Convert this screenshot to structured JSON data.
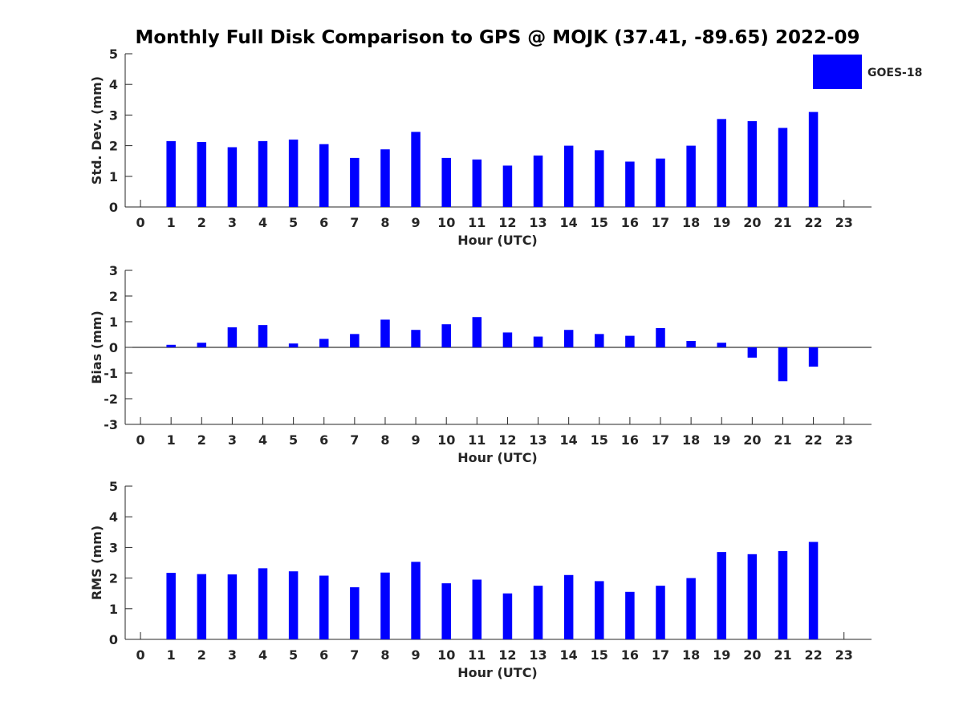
{
  "title": "Monthly Full Disk Comparison to GPS @ MOJK (37.41, -89.65) 2022-09",
  "legend": {
    "label": "GOES-18",
    "color": "#0000ff",
    "position": "top-right"
  },
  "chart_data": [
    {
      "type": "bar",
      "ylabel": "Std. Dev. (mm)",
      "xlabel": "Hour (UTC)",
      "x": [
        0,
        1,
        2,
        3,
        4,
        5,
        6,
        7,
        8,
        9,
        10,
        11,
        12,
        13,
        14,
        15,
        16,
        17,
        18,
        19,
        20,
        21,
        22,
        23
      ],
      "xlim": [
        -0.5,
        23.9
      ],
      "ylim": [
        0,
        5
      ],
      "yticks": [
        0,
        1,
        2,
        3,
        4,
        5
      ],
      "series": [
        {
          "name": "GOES-18",
          "color": "#0000ff",
          "values": [
            null,
            2.15,
            2.12,
            1.95,
            2.15,
            2.2,
            2.05,
            1.6,
            1.88,
            2.45,
            1.6,
            1.55,
            1.35,
            1.68,
            2.0,
            1.85,
            1.48,
            1.58,
            2.0,
            2.87,
            2.8,
            2.58,
            3.1,
            null
          ]
        }
      ]
    },
    {
      "type": "bar",
      "ylabel": "Bias (mm)",
      "xlabel": "Hour (UTC)",
      "x": [
        0,
        1,
        2,
        3,
        4,
        5,
        6,
        7,
        8,
        9,
        10,
        11,
        12,
        13,
        14,
        15,
        16,
        17,
        18,
        19,
        20,
        21,
        22,
        23
      ],
      "xlim": [
        -0.5,
        23.9
      ],
      "ylim": [
        -3,
        3
      ],
      "yticks": [
        -3,
        -2,
        -1,
        0,
        1,
        2,
        3
      ],
      "zero_line": true,
      "series": [
        {
          "name": "GOES-18",
          "color": "#0000ff",
          "values": [
            null,
            0.1,
            0.18,
            0.78,
            0.87,
            0.15,
            0.33,
            0.52,
            1.08,
            0.68,
            0.9,
            1.18,
            0.58,
            0.42,
            0.68,
            0.52,
            0.45,
            0.75,
            0.25,
            0.18,
            -0.4,
            -1.32,
            -0.75,
            null
          ]
        }
      ]
    },
    {
      "type": "bar",
      "ylabel": "RMS (mm)",
      "xlabel": "Hour (UTC)",
      "x": [
        0,
        1,
        2,
        3,
        4,
        5,
        6,
        7,
        8,
        9,
        10,
        11,
        12,
        13,
        14,
        15,
        16,
        17,
        18,
        19,
        20,
        21,
        22,
        23
      ],
      "xlim": [
        -0.5,
        23.9
      ],
      "ylim": [
        0,
        5
      ],
      "yticks": [
        0,
        1,
        2,
        3,
        4,
        5
      ],
      "series": [
        {
          "name": "GOES-18",
          "color": "#0000ff",
          "values": [
            null,
            2.17,
            2.13,
            2.12,
            2.32,
            2.22,
            2.08,
            1.7,
            2.18,
            2.53,
            1.83,
            1.95,
            1.5,
            1.75,
            2.1,
            1.9,
            1.55,
            1.75,
            2.0,
            2.85,
            2.78,
            2.88,
            3.18,
            null
          ]
        }
      ]
    }
  ]
}
